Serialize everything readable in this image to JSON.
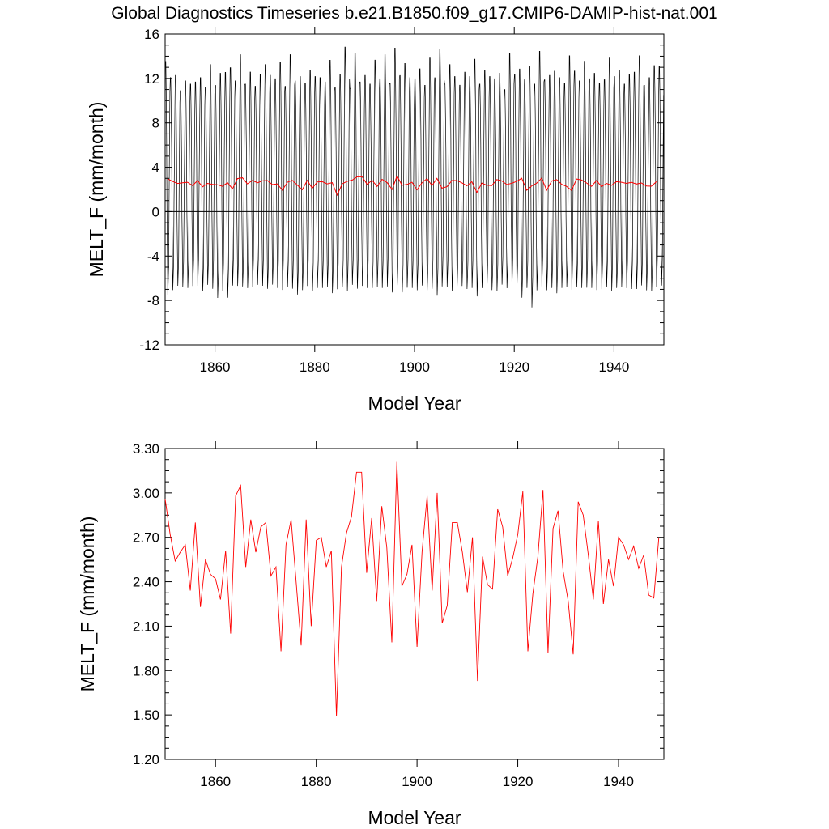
{
  "figure": {
    "title": "Global Diagnostics Timeseries b.e21.B1850.f09_g17.CMIP6-DAMIP-hist-nat.001"
  },
  "chart_data": [
    {
      "type": "line",
      "title": "",
      "xlabel": "Model Year",
      "ylabel": "MELT_F (mm/month)",
      "xlim": [
        1850,
        1950
      ],
      "ylim": [
        -12,
        16
      ],
      "xticks": [
        1860,
        1880,
        1900,
        1920,
        1940
      ],
      "xtick_labels": [
        "1860",
        "1880",
        "1900",
        "1920",
        "1940"
      ],
      "yticks": [
        -12,
        -8,
        -4,
        0,
        4,
        8,
        12,
        16
      ],
      "ytick_labels": [
        "-12",
        "-8",
        "-4",
        "0",
        "4",
        "8",
        "12",
        "16"
      ],
      "zero_line": 0,
      "grid": false,
      "legend": "none",
      "series": [
        {
          "color": "#000000",
          "description": "monthly values, seasonal cycle",
          "monthly_minima": [
            -7.3,
            -6.8,
            -6.4,
            -6.5,
            -6.6,
            -6.4,
            -6.4,
            -6.9,
            -6.3,
            -6.7,
            -7.5,
            -6.9,
            -7.5,
            -6.4,
            -6.4,
            -6.5,
            -6.6,
            -6.5,
            -6.3,
            -6.4,
            -6.7,
            -6.3,
            -6.6,
            -6.8,
            -6.5,
            -6.7,
            -7.2,
            -6.8,
            -6.4,
            -6.9,
            -6.6,
            -6.6,
            -6.5,
            -7.1,
            -6.7,
            -6.5,
            -6.9,
            -6.3,
            -6.7,
            -6.4,
            -6.6,
            -6.6,
            -6.5,
            -6.6,
            -6.5,
            -7.0,
            -6.4,
            -7.0,
            -6.6,
            -6.6,
            -6.8,
            -6.4,
            -6.8,
            -6.7,
            -7.3,
            -6.5,
            -6.5,
            -6.9,
            -6.6,
            -6.4,
            -6.7,
            -6.6,
            -7.4,
            -6.6,
            -6.4,
            -6.8,
            -6.9,
            -6.3,
            -6.6,
            -6.5,
            -6.6,
            -7.5,
            -6.6,
            -8.4,
            -6.8,
            -6.5,
            -6.8,
            -6.6,
            -7.1,
            -6.6,
            -6.5,
            -6.8,
            -6.5,
            -6.6,
            -6.6,
            -6.6,
            -6.8,
            -6.7,
            -6.5,
            -6.9,
            -6.6,
            -6.5,
            -6.6,
            -6.7,
            -6.7,
            -6.4,
            -6.8,
            -6.9,
            -6.5,
            -6.4
          ],
          "monthly_maxima": [
            13.9,
            12.4,
            12.6,
            11.2,
            12.1,
            11.8,
            12.0,
            12.4,
            11.5,
            13.6,
            11.7,
            12.8,
            12.9,
            13.3,
            12.1,
            14.5,
            11.8,
            12.9,
            11.6,
            12.7,
            13.6,
            12.6,
            12.3,
            13.8,
            11.6,
            14.5,
            12.1,
            12.5,
            11.9,
            13.1,
            12.5,
            12.4,
            12.0,
            14.0,
            11.5,
            12.7,
            15.2,
            11.4,
            14.6,
            12.0,
            12.6,
            11.8,
            14.0,
            12.3,
            14.5,
            11.9,
            15.1,
            12.6,
            13.7,
            12.4,
            12.3,
            13.2,
            11.7,
            14.2,
            12.4,
            15.0,
            11.8,
            13.6,
            12.5,
            11.7,
            12.9,
            12.5,
            14.1,
            11.8,
            13.1,
            12.5,
            12.3,
            12.8,
            11.3,
            14.6,
            12.7,
            13.2,
            12.2,
            13.5,
            11.8,
            14.8,
            12.2,
            12.6,
            13.0,
            12.4,
            11.9,
            14.4,
            13.0,
            12.1,
            13.9,
            12.3,
            12.8,
            11.9,
            12.2,
            14.2,
            12.5,
            13.1,
            11.8,
            12.7,
            12.9,
            14.4,
            11.7,
            12.4,
            13.5,
            13.4
          ]
        },
        {
          "color": "#ff0000",
          "description": "annual mean",
          "values_ref": "annual_mean"
        }
      ]
    },
    {
      "type": "line",
      "title": "",
      "xlabel": "Model Year",
      "ylabel": "MELT_F (mm/month)",
      "xlim": [
        1850,
        1949
      ],
      "ylim": [
        1.2,
        3.3
      ],
      "xticks": [
        1860,
        1880,
        1900,
        1920,
        1940
      ],
      "xtick_labels": [
        "1860",
        "1880",
        "1900",
        "1920",
        "1940"
      ],
      "yticks": [
        1.2,
        1.5,
        1.8,
        2.1,
        2.4,
        2.7,
        3.0,
        3.3
      ],
      "ytick_labels": [
        "1.20",
        "1.50",
        "1.80",
        "2.10",
        "2.40",
        "2.70",
        "3.00",
        "3.30"
      ],
      "grid": false,
      "legend": "none",
      "series": [
        {
          "color": "#ff0000",
          "description": "annual mean",
          "x_start": 1850,
          "values": [
            2.96,
            2.72,
            2.54,
            2.6,
            2.65,
            2.34,
            2.8,
            2.23,
            2.55,
            2.45,
            2.42,
            2.28,
            2.61,
            2.05,
            2.98,
            3.05,
            2.5,
            2.82,
            2.6,
            2.77,
            2.8,
            2.44,
            2.5,
            1.93,
            2.65,
            2.82,
            2.4,
            1.97,
            2.82,
            2.1,
            2.68,
            2.7,
            2.5,
            2.61,
            1.49,
            2.5,
            2.73,
            2.84,
            3.14,
            3.14,
            2.46,
            2.83,
            2.27,
            2.91,
            2.63,
            1.99,
            3.21,
            2.37,
            2.45,
            2.65,
            1.96,
            2.6,
            2.98,
            2.34,
            3.0,
            2.12,
            2.24,
            2.8,
            2.8,
            2.6,
            2.33,
            2.7,
            1.73,
            2.57,
            2.38,
            2.35,
            2.89,
            2.77,
            2.44,
            2.56,
            2.72,
            3.01,
            1.93,
            2.32,
            2.57,
            3.02,
            1.92,
            2.76,
            2.88,
            2.47,
            2.27,
            1.91,
            2.94,
            2.85,
            2.58,
            2.28,
            2.81,
            2.25,
            2.55,
            2.37,
            2.7,
            2.65,
            2.55,
            2.64,
            2.49,
            2.58,
            2.31,
            2.29,
            2.7
          ]
        }
      ]
    }
  ]
}
